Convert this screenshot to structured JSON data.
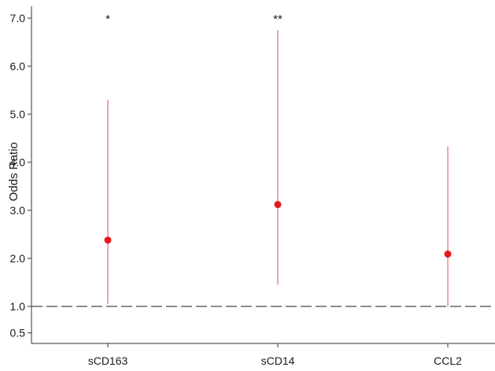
{
  "chart_data": {
    "type": "scatter",
    "ylabel": "Odds Ratio",
    "categories": [
      "sCD163",
      "sCD14",
      "CCL2"
    ],
    "y_ticks": [
      "0.5",
      "1.0",
      "2.0",
      "3.0",
      "4.0",
      "5.0",
      "6.0",
      "7.0"
    ],
    "series": [
      {
        "points": [
          {
            "category": "sCD163",
            "y": 2.38,
            "lower": 1.05,
            "upper": 5.3,
            "annotation": "*"
          },
          {
            "category": "sCD14",
            "y": 3.12,
            "lower": 1.45,
            "upper": 6.75,
            "annotation": "**"
          },
          {
            "category": "CCL2",
            "y": 2.09,
            "lower": 1.0,
            "upper": 4.33,
            "annotation": ""
          }
        ]
      }
    ],
    "reference_line": {
      "y": 1.0,
      "style": "dashed"
    },
    "colors": {
      "point": "#e41a1c",
      "error_bar": "#e86a6a",
      "reference_line": "#666666",
      "axis": "#333333"
    },
    "grid": false,
    "legend": "none"
  }
}
